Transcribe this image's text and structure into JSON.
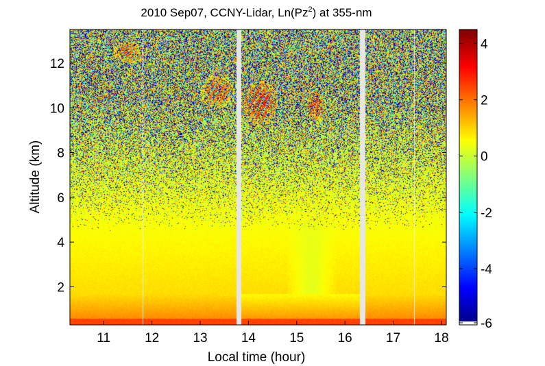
{
  "chart_data": {
    "type": "heatmap",
    "title": {
      "prefix": "2010 Sep07, CCNY-Lidar, Ln(Pz",
      "superscript": "2",
      "suffix": ") at 355-nm"
    },
    "xlabel": "Local time (hour)",
    "ylabel": "Altitude (km)",
    "xlim": [
      10.3,
      18.1
    ],
    "ylim": [
      0.3,
      13.5
    ],
    "x_ticks": [
      11,
      12,
      13,
      14,
      15,
      16,
      17,
      18
    ],
    "y_ticks": [
      2,
      4,
      6,
      8,
      10,
      12
    ],
    "colorbar": {
      "range": [
        -6,
        4.5
      ],
      "ticks": [
        -6,
        -4,
        -2,
        0,
        2,
        4
      ],
      "colormap": "jet"
    },
    "data_gaps_hours": [
      [
        13.75,
        13.85
      ],
      [
        16.3,
        16.42
      ]
    ],
    "thin_gap_lines_hours": [
      11.8,
      17.43
    ],
    "profile_description": {
      "surface_value": 2.2,
      "boundary_layer_top_km": 1.7,
      "noise_onset_km": 6.0,
      "cloud_features": [
        {
          "time_range": [
            11.2,
            11.8
          ],
          "alt_range": [
            12.0,
            13.0
          ],
          "peak": 2.5
        },
        {
          "time_range": [
            13.0,
            13.7
          ],
          "alt_range": [
            10.0,
            11.5
          ],
          "peak": 2.5
        },
        {
          "time_range": [
            13.9,
            14.6
          ],
          "alt_range": [
            9.2,
            11.2
          ],
          "peak": 3.0
        },
        {
          "time_range": [
            15.2,
            15.6
          ],
          "alt_range": [
            9.4,
            10.8
          ],
          "peak": 3.0
        }
      ]
    }
  },
  "colors": {
    "background": "#ffffff",
    "gap": "#e6e6e6",
    "axis": "#000000"
  }
}
